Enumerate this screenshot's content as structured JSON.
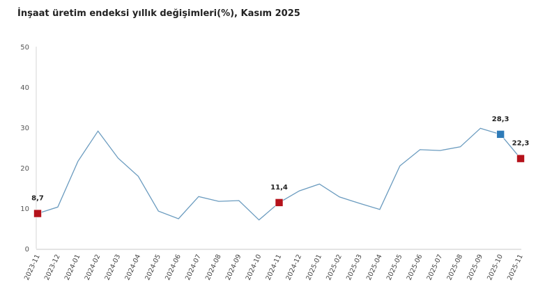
{
  "chart_data": {
    "type": "line",
    "title": "İnşaat üretim endeksi yıllık değişimleri(%), Kasım 2025",
    "xlabel": "",
    "ylabel": "",
    "ylim": [
      0,
      50
    ],
    "yticks": [
      "0",
      "10",
      "20",
      "30",
      "40",
      "50"
    ],
    "grid": false,
    "legend": "none",
    "categories": [
      "2023-11",
      "2023-12",
      "2024-01",
      "2024-02",
      "2024-03",
      "2024-04",
      "2024-05",
      "2024-06",
      "2024-07",
      "2024-08",
      "2024-09",
      "2024-10",
      "2024-11",
      "2024-12",
      "2025-01",
      "2025-02",
      "2025-03",
      "2025-04",
      "2025-05",
      "2025-06",
      "2025-07",
      "2025-08",
      "2025-09",
      "2025-10",
      "2025-11"
    ],
    "series": [
      {
        "name": "Yıllık değişim",
        "color": "#6a9bbf",
        "values": [
          8.7,
          10.3,
          21.6,
          29.1,
          22.4,
          17.9,
          9.3,
          7.4,
          12.9,
          11.7,
          11.9,
          7.1,
          11.4,
          14.3,
          16.0,
          12.8,
          11.2,
          9.7,
          20.5,
          24.5,
          24.3,
          25.2,
          29.8,
          28.3,
          22.3
        ]
      }
    ],
    "highlights": [
      {
        "index": 0,
        "label": "8,7",
        "color": "#b5121b"
      },
      {
        "index": 12,
        "label": "11,4",
        "color": "#b5121b"
      },
      {
        "index": 23,
        "label": "28,3",
        "color": "#2e7bb8"
      },
      {
        "index": 24,
        "label": "22,3",
        "color": "#b5121b"
      }
    ]
  }
}
